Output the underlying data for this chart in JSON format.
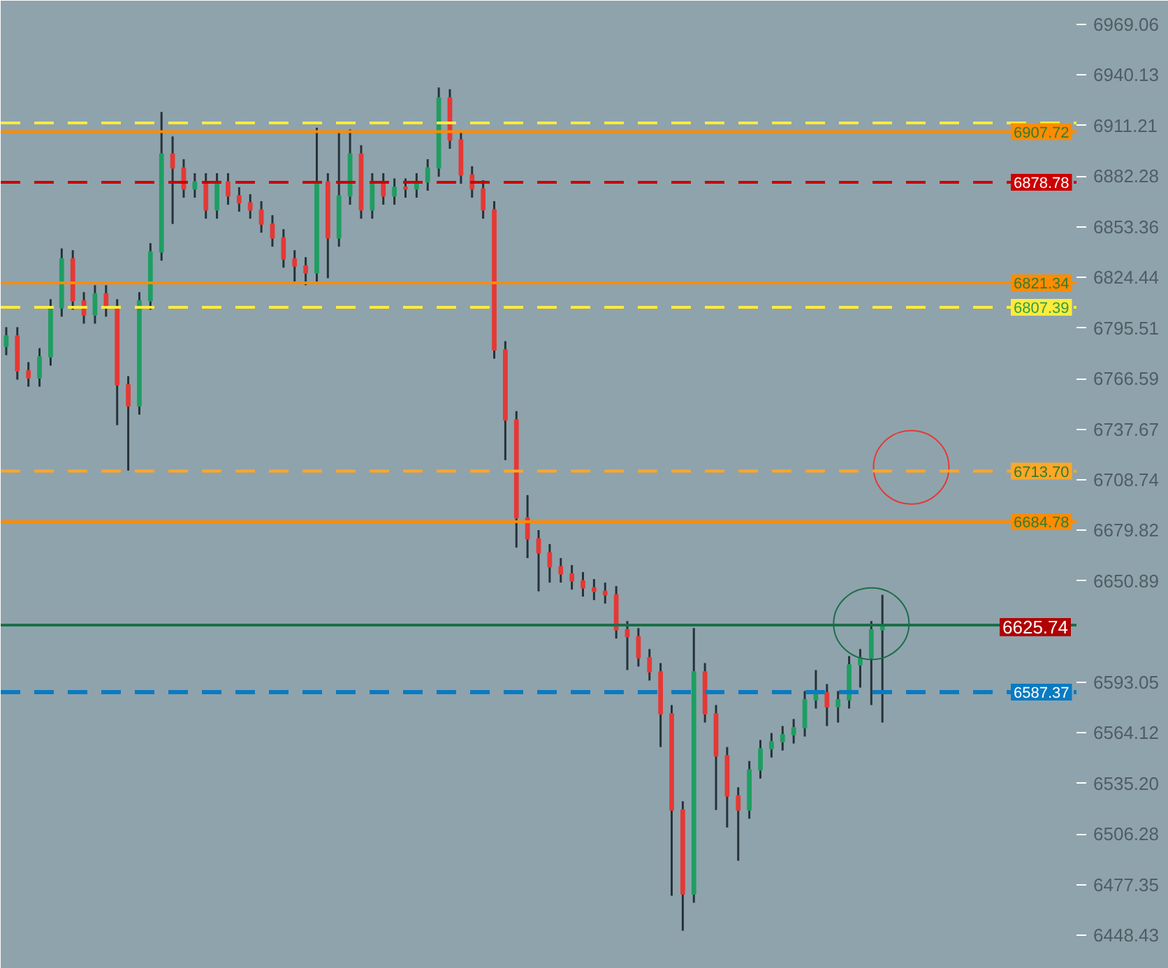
{
  "chart_data": {
    "type": "candlestick",
    "categories": [
      null,
      null,
      null,
      null,
      null,
      null,
      null,
      null,
      null,
      null,
      null,
      null,
      null,
      null,
      null,
      null,
      null,
      null,
      null,
      null,
      null,
      null,
      null,
      null,
      null,
      null,
      null,
      null,
      null,
      null,
      null,
      null,
      null,
      null,
      null,
      null,
      null,
      null,
      null,
      null,
      null,
      null,
      null,
      null,
      null,
      null,
      null,
      null,
      null,
      null,
      null,
      null,
      null,
      null,
      null,
      null,
      null,
      null,
      null,
      null,
      null,
      null,
      null,
      null,
      null,
      null,
      null,
      null,
      null,
      null,
      null,
      null,
      null,
      null,
      null,
      null,
      null,
      null,
      null,
      null,
      null,
      null,
      null,
      null,
      null,
      null,
      null,
      null,
      null,
      null,
      null,
      null,
      null,
      null,
      null,
      null,
      null
    ],
    "ohlc": [
      [
        6785,
        6796,
        6780,
        6791
      ],
      [
        6791,
        6796,
        6766,
        6771
      ],
      [
        6771,
        6776,
        6762,
        6767
      ],
      [
        6767,
        6784,
        6762,
        6779
      ],
      [
        6779,
        6812,
        6774,
        6807
      ],
      [
        6807,
        6841,
        6802,
        6835
      ],
      [
        6835,
        6840,
        6806,
        6811
      ],
      [
        6811,
        6816,
        6798,
        6803
      ],
      [
        6803,
        6820,
        6798,
        6815
      ],
      [
        6815,
        6820,
        6802,
        6807
      ],
      [
        6807,
        6812,
        6740,
        6763
      ],
      [
        6763,
        6768,
        6714,
        6751
      ],
      [
        6751,
        6816,
        6746,
        6811
      ],
      [
        6811,
        6844,
        6806,
        6839
      ],
      [
        6839,
        6919,
        6834,
        6895
      ],
      [
        6895,
        6905,
        6855,
        6887
      ],
      [
        6887,
        6892,
        6870,
        6875
      ],
      [
        6875,
        6884,
        6870,
        6879
      ],
      [
        6879,
        6884,
        6858,
        6863
      ],
      [
        6863,
        6884,
        6858,
        6879
      ],
      [
        6879,
        6884,
        6866,
        6871
      ],
      [
        6871,
        6876,
        6862,
        6867
      ],
      [
        6867,
        6872,
        6858,
        6863
      ],
      [
        6863,
        6868,
        6850,
        6855
      ],
      [
        6855,
        6860,
        6842,
        6847
      ],
      [
        6847,
        6852,
        6830,
        6835
      ],
      [
        6835,
        6840,
        6822,
        6831
      ],
      [
        6831,
        6836,
        6820,
        6827
      ],
      [
        6827,
        6910,
        6822,
        6879
      ],
      [
        6879,
        6884,
        6824,
        6847
      ],
      [
        6847,
        6907,
        6842,
        6871
      ],
      [
        6871,
        6909,
        6866,
        6895
      ],
      [
        6895,
        6900,
        6858,
        6863
      ],
      [
        6863,
        6884,
        6858,
        6879
      ],
      [
        6879,
        6884,
        6866,
        6871
      ],
      [
        6871,
        6881,
        6866,
        6876
      ],
      [
        6876,
        6881,
        6870,
        6875
      ],
      [
        6875,
        6884,
        6870,
        6879
      ],
      [
        6879,
        6892,
        6874,
        6887
      ],
      [
        6887,
        6933,
        6882,
        6927
      ],
      [
        6927,
        6932,
        6898,
        6903
      ],
      [
        6903,
        6908,
        6878,
        6883
      ],
      [
        6883,
        6888,
        6870,
        6875
      ],
      [
        6875,
        6880,
        6858,
        6863
      ],
      [
        6863,
        6868,
        6778,
        6783
      ],
      [
        6783,
        6788,
        6720,
        6743
      ],
      [
        6743,
        6748,
        6670,
        6687
      ],
      [
        6687,
        6700,
        6664,
        6675
      ],
      [
        6675,
        6680,
        6645,
        6667
      ],
      [
        6667,
        6672,
        6650,
        6659
      ],
      [
        6659,
        6664,
        6650,
        6655
      ],
      [
        6655,
        6660,
        6646,
        6651
      ],
      [
        6651,
        6656,
        6642,
        6647
      ],
      [
        6647,
        6652,
        6640,
        6645
      ],
      [
        6645,
        6650,
        6638,
        6643
      ],
      [
        6643,
        6648,
        6618,
        6623
      ],
      [
        6623,
        6628,
        6600,
        6619
      ],
      [
        6619,
        6624,
        6602,
        6607
      ],
      [
        6607,
        6612,
        6594,
        6599
      ],
      [
        6599,
        6604,
        6556,
        6575
      ],
      [
        6575,
        6580,
        6471,
        6520
      ],
      [
        6520,
        6525,
        6451,
        6472
      ],
      [
        6472,
        6624,
        6467,
        6599
      ],
      [
        6599,
        6604,
        6570,
        6575
      ],
      [
        6575,
        6580,
        6520,
        6551
      ],
      [
        6551,
        6556,
        6510,
        6528
      ],
      [
        6528,
        6533,
        6491,
        6520
      ],
      [
        6520,
        6548,
        6515,
        6543
      ],
      [
        6543,
        6560,
        6538,
        6555
      ],
      [
        6555,
        6564,
        6550,
        6559
      ],
      [
        6559,
        6568,
        6554,
        6563
      ],
      [
        6563,
        6572,
        6558,
        6567
      ],
      [
        6567,
        6588,
        6562,
        6583
      ],
      [
        6583,
        6600,
        6578,
        6587
      ],
      [
        6587,
        6592,
        6568,
        6579
      ],
      [
        6579,
        6588,
        6570,
        6583
      ],
      [
        6583,
        6608,
        6578,
        6603
      ],
      [
        6603,
        6612,
        6590,
        6607
      ],
      [
        6607,
        6628,
        6580,
        6623
      ],
      [
        6623,
        6643,
        6570,
        6626
      ],
      null,
      null,
      null,
      null,
      null,
      null,
      null,
      null,
      null,
      null,
      null,
      null,
      null,
      null,
      null,
      null,
      null
    ],
    "ylim": [
      6429.3,
      6982.6
    ],
    "yticks": [
      6969.06,
      6940.13,
      6911.21,
      6882.28,
      6853.36,
      6824.44,
      6795.51,
      6766.59,
      6737.67,
      6708.74,
      6679.82,
      6650.89,
      6593.05,
      6564.12,
      {
        "value": 6535.2,
        "label": "6535.20"
      },
      6506.28,
      6477.35,
      6448.43
    ],
    "grid": false,
    "ref_lines": [
      {
        "axis": "y",
        "value": 6912.7,
        "label": null,
        "color": "#ffeb3b",
        "line_style": "dashed"
      },
      {
        "axis": "y",
        "value": 6907.72,
        "label": "6907.72",
        "color": "#ff8c00",
        "line_style": "solid"
      },
      {
        "axis": "y",
        "value": 6878.78,
        "label": "6878.78",
        "color": "#cc0000",
        "line_style": "dashed"
      },
      {
        "axis": "y",
        "value": 6821.34,
        "label": "6821.34",
        "color": "#ff8c00",
        "line_style": "solid"
      },
      {
        "axis": "y",
        "value": 6807.39,
        "label": "6807.39",
        "color": "#ffeb3b",
        "line_style": "dashed"
      },
      {
        "axis": "y",
        "value": 6713.7,
        "label": "6713.70",
        "color": "#ffa726",
        "line_style": "dashed"
      },
      {
        "axis": "y",
        "value": 6684.78,
        "label": "6684.78",
        "color": "#ff8c00",
        "line_style": "solid"
      },
      {
        "axis": "y",
        "value": 6625.74,
        "label": "6625.74",
        "color": "#1b6e4a",
        "line_style": "solid"
      },
      {
        "axis": "y",
        "value": 6587.37,
        "label": "6587.37",
        "color": "#0a7bc2",
        "line_style": "dashed"
      }
    ]
  }
}
